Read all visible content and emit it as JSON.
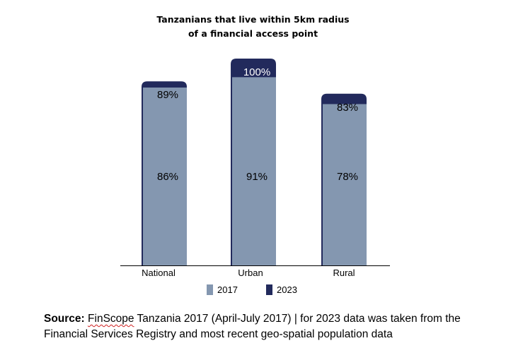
{
  "chart_data": {
    "type": "bar",
    "title_line1": "Tanzanians that live within 5km radius",
    "title_line2": "of a financial access point",
    "categories": [
      "National",
      "Urban",
      "Rural"
    ],
    "series": [
      {
        "name": "2017",
        "values": [
          86,
          91,
          78
        ],
        "labels": [
          "86%",
          "91%",
          "78%"
        ],
        "color": "#8497b0"
      },
      {
        "name": "2023",
        "values": [
          89,
          100,
          83
        ],
        "labels": [
          "89%",
          "100%",
          "83%"
        ],
        "color": "#222a5c"
      }
    ],
    "xlabel": "",
    "ylabel": "",
    "ylim": [
      0,
      100
    ],
    "grid": false,
    "legend_position": "bottom"
  },
  "source": {
    "label": "Source:",
    "brand": "FinScope",
    "text": " Tanzania 2017 (April-July 2017) | for 2023 data was taken from the Financial Services Registry and most recent geo-spatial population data"
  }
}
